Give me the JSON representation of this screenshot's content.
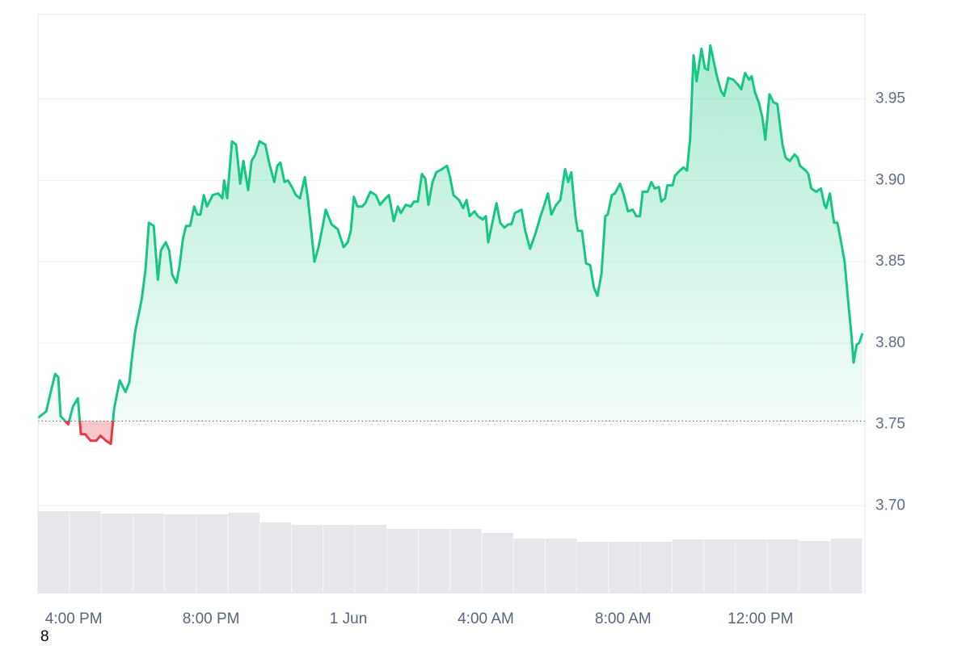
{
  "chart_data": {
    "type": "line",
    "x": [
      14.96,
      15.2,
      15.32,
      15.46,
      15.55,
      15.62,
      15.84,
      15.98,
      16.12,
      16.21,
      16.33,
      16.49,
      16.66,
      16.78,
      16.94,
      17.08,
      17.18,
      17.34,
      17.51,
      17.62,
      17.69,
      17.79,
      17.98,
      18.09,
      18.19,
      18.33,
      18.45,
      18.54,
      18.68,
      18.78,
      18.87,
      18.99,
      19.08,
      19.18,
      19.27,
      19.39,
      19.51,
      19.6,
      19.69,
      19.79,
      19.88,
      20.05,
      20.21,
      20.33,
      20.38,
      20.47,
      20.61,
      20.73,
      20.85,
      20.94,
      21.08,
      21.18,
      21.29,
      21.41,
      21.58,
      21.69,
      21.84,
      21.93,
      22.02,
      22.14,
      22.24,
      22.35,
      22.47,
      22.59,
      22.73,
      22.82,
      23.01,
      23.13,
      23.27,
      23.34,
      23.51,
      23.69,
      23.86,
      23.98,
      24.07,
      24.16,
      24.26,
      24.4,
      24.49,
      24.64,
      24.8,
      24.92,
      25.04,
      25.18,
      25.32,
      25.44,
      25.53,
      25.67,
      25.81,
      25.91,
      26.02,
      26.14,
      26.24,
      26.33,
      26.45,
      26.56,
      26.73,
      26.87,
      26.96,
      27.06,
      27.22,
      27.34,
      27.44,
      27.53,
      27.67,
      27.77,
      27.91,
      28.0,
      28.07,
      28.19,
      28.31,
      28.42,
      28.54,
      28.66,
      28.75,
      28.85,
      29.04,
      29.15,
      29.29,
      29.44,
      29.58,
      29.69,
      29.81,
      29.91,
      30.05,
      30.17,
      30.31,
      30.4,
      30.49,
      30.61,
      30.68,
      30.8,
      30.92,
      31.04,
      31.15,
      31.25,
      31.37,
      31.48,
      31.55,
      31.67,
      31.76,
      31.91,
      32.02,
      32.14,
      32.28,
      32.38,
      32.49,
      32.57,
      32.71,
      32.82,
      32.92,
      33.04,
      33.11,
      33.22,
      33.29,
      33.44,
      33.51,
      33.65,
      33.76,
      33.86,
      33.95,
      34.05,
      34.14,
      34.28,
      34.38,
      34.47,
      34.54,
      34.66,
      34.73,
      34.85,
      34.94,
      35.06,
      35.2,
      35.34,
      35.44,
      35.55,
      35.67,
      35.74,
      35.84,
      35.95,
      36.05,
      36.14,
      36.26,
      36.38,
      36.49,
      36.64,
      36.73,
      36.85,
      36.99,
      37.08,
      37.15,
      37.32,
      37.39,
      37.48,
      37.62,
      37.76,
      37.86,
      37.91,
      38.02,
      38.14,
      38.24,
      38.33,
      38.45,
      38.57,
      38.64,
      38.71,
      38.8,
      38.87,
      38.97
    ],
    "values": [
      3.754,
      3.758,
      3.769,
      3.781,
      3.779,
      3.755,
      3.75,
      3.761,
      3.766,
      3.744,
      3.744,
      3.74,
      3.74,
      3.743,
      3.74,
      3.738,
      3.76,
      3.777,
      3.77,
      3.776,
      3.79,
      3.807,
      3.827,
      3.845,
      3.874,
      3.872,
      3.839,
      3.857,
      3.862,
      3.857,
      3.842,
      3.837,
      3.847,
      3.864,
      3.872,
      3.872,
      3.884,
      3.879,
      3.879,
      3.891,
      3.884,
      3.891,
      3.892,
      3.889,
      3.9,
      3.889,
      3.924,
      3.922,
      3.898,
      3.912,
      3.894,
      3.912,
      3.916,
      3.924,
      3.922,
      3.911,
      3.899,
      3.909,
      3.911,
      3.899,
      3.9,
      3.896,
      3.891,
      3.889,
      3.902,
      3.889,
      3.85,
      3.859,
      3.874,
      3.882,
      3.873,
      3.87,
      3.859,
      3.862,
      3.869,
      3.89,
      3.884,
      3.884,
      3.886,
      3.893,
      3.891,
      3.885,
      3.888,
      3.891,
      3.875,
      3.884,
      3.88,
      3.885,
      3.884,
      3.887,
      3.887,
      3.904,
      3.901,
      3.885,
      3.899,
      3.905,
      3.907,
      3.909,
      3.902,
      3.891,
      3.888,
      3.883,
      3.888,
      3.878,
      3.881,
      3.878,
      3.876,
      3.878,
      3.862,
      3.874,
      3.886,
      3.874,
      3.871,
      3.873,
      3.873,
      3.88,
      3.882,
      3.869,
      3.858,
      3.867,
      3.877,
      3.884,
      3.892,
      3.879,
      3.885,
      3.888,
      3.907,
      3.899,
      3.905,
      3.878,
      3.869,
      3.869,
      3.849,
      3.848,
      3.834,
      3.829,
      3.843,
      3.878,
      3.879,
      3.891,
      3.892,
      3.898,
      3.891,
      3.881,
      3.882,
      3.878,
      3.878,
      3.893,
      3.893,
      3.899,
      3.895,
      3.896,
      3.887,
      3.889,
      3.897,
      3.897,
      3.903,
      3.906,
      3.908,
      3.906,
      3.926,
      3.977,
      3.961,
      3.981,
      3.969,
      3.968,
      3.983,
      3.971,
      3.964,
      3.955,
      3.952,
      3.963,
      3.962,
      3.959,
      3.956,
      3.966,
      3.962,
      3.964,
      3.954,
      3.948,
      3.939,
      3.925,
      3.953,
      3.948,
      3.947,
      3.922,
      3.914,
      3.912,
      3.916,
      3.914,
      3.909,
      3.906,
      3.904,
      3.895,
      3.893,
      3.895,
      3.885,
      3.883,
      3.892,
      3.874,
      3.874,
      3.864,
      3.85,
      3.822,
      3.807,
      3.788,
      3.799,
      3.8,
      3.806
    ],
    "baseline": 3.752,
    "up_color": "#16c784",
    "down_color": "#ea3943",
    "xlim": [
      14.96,
      39.04
    ],
    "xticks": [
      {
        "value": 16,
        "label": "4:00 PM"
      },
      {
        "value": 20,
        "label": "8:00 PM"
      },
      {
        "value": 24,
        "label": "1 Jun"
      },
      {
        "value": 28,
        "label": "4:00 AM"
      },
      {
        "value": 32,
        "label": "8:00 AM"
      },
      {
        "value": 36,
        "label": "12:00 PM"
      }
    ],
    "ylim": [
      3.646,
      4.002
    ],
    "yticks": [
      {
        "value": 3.7,
        "label": "3.70"
      },
      3.75,
      {
        "value": 3.8,
        "label": "3.80"
      },
      3.85,
      {
        "value": 3.9,
        "label": "3.90"
      },
      3.95
    ],
    "grid": true,
    "volume": {
      "values": [
        102,
        102,
        99,
        99,
        98,
        98,
        100,
        88,
        85,
        85,
        85,
        80,
        80,
        80,
        75,
        68,
        68,
        64,
        64,
        64,
        67,
        67,
        67,
        67,
        65,
        68
      ],
      "ylim": [
        0,
        717
      ],
      "color": "#e5e7eb"
    },
    "footnote": "8"
  }
}
